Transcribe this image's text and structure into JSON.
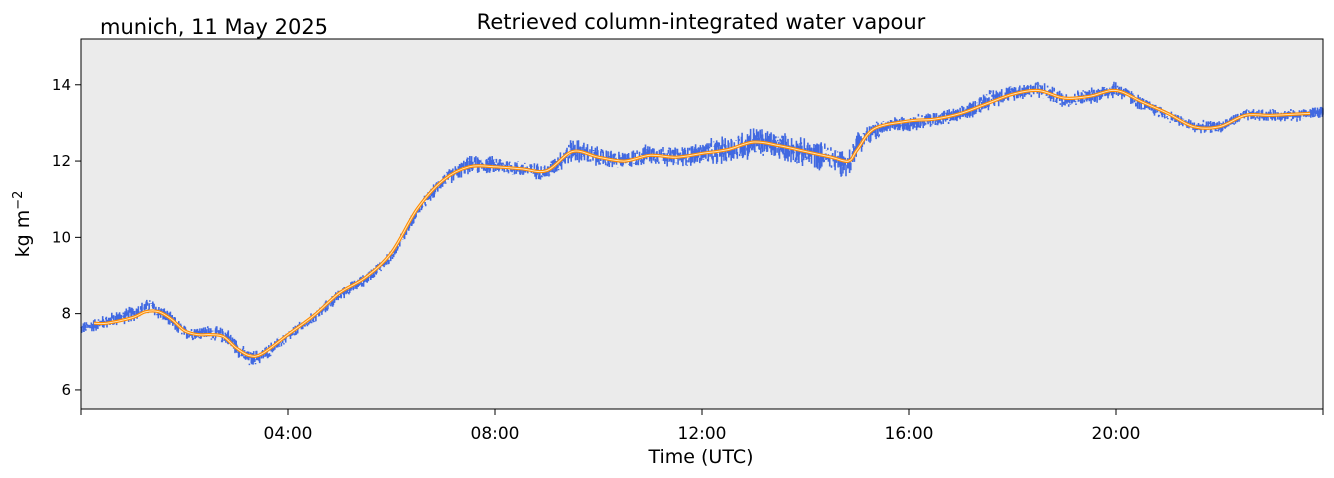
{
  "header": {
    "location_date": "munich, 11 May 2025",
    "title": "Retrieved column-integrated water vapour"
  },
  "chart_data": {
    "type": "line",
    "title": "Retrieved column-integrated water vapour",
    "xlabel": "Time (UTC)",
    "ylabel": "kg m−2",
    "ylabel_base": "kg m",
    "ylabel_exponent": "−2",
    "xlim": [
      "00:00",
      "24:00"
    ],
    "ylim": [
      5.5,
      15.2
    ],
    "x_ticks": [
      "04:00",
      "08:00",
      "12:00",
      "16:00",
      "20:00"
    ],
    "y_ticks": [
      6,
      8,
      10,
      12,
      14
    ],
    "grid": false,
    "background": "#ebebeb",
    "colors": {
      "raw": "#4169e1",
      "smooth": "#ff8c00",
      "smooth_inner": "#ffe0b0"
    },
    "series": [
      {
        "kind": "raw_scatter",
        "x": [
          "00:00",
          "00:30",
          "01:00",
          "01:20",
          "01:40",
          "02:00",
          "02:30",
          "02:50",
          "03:05",
          "03:15",
          "03:30",
          "04:00",
          "04:30",
          "05:00",
          "05:30",
          "06:00",
          "06:30",
          "07:00",
          "07:30",
          "08:00",
          "08:30",
          "09:00",
          "09:30",
          "10:00",
          "10:30",
          "11:00",
          "11:30",
          "12:00",
          "12:30",
          "13:00",
          "13:30",
          "14:00",
          "14:30",
          "14:50",
          "15:00",
          "15:30",
          "16:00",
          "16:30",
          "17:00",
          "17:30",
          "18:00",
          "18:30",
          "19:00",
          "19:30",
          "20:00",
          "20:30",
          "21:00",
          "21:30",
          "22:00",
          "22:30",
          "23:00",
          "23:30",
          "24:00"
        ],
        "y": [
          7.6,
          7.8,
          8.0,
          8.2,
          7.9,
          7.5,
          7.5,
          7.4,
          7.0,
          6.8,
          6.9,
          7.4,
          7.9,
          8.5,
          8.9,
          9.5,
          10.7,
          11.5,
          11.9,
          11.9,
          11.8,
          11.7,
          12.3,
          12.1,
          12.0,
          12.2,
          12.1,
          12.2,
          12.3,
          12.5,
          12.4,
          12.2,
          12.1,
          11.9,
          12.5,
          12.9,
          13.0,
          13.1,
          13.2,
          13.6,
          13.8,
          13.9,
          13.6,
          13.7,
          13.9,
          13.5,
          13.2,
          12.9,
          12.9,
          13.2,
          13.2,
          13.2,
          13.3
        ],
        "spread": [
          0.15,
          0.18,
          0.2,
          0.2,
          0.2,
          0.18,
          0.18,
          0.2,
          0.2,
          0.2,
          0.18,
          0.15,
          0.15,
          0.15,
          0.15,
          0.15,
          0.15,
          0.18,
          0.22,
          0.22,
          0.2,
          0.2,
          0.3,
          0.25,
          0.22,
          0.25,
          0.25,
          0.3,
          0.35,
          0.4,
          0.35,
          0.35,
          0.35,
          0.35,
          0.3,
          0.2,
          0.2,
          0.2,
          0.2,
          0.25,
          0.2,
          0.22,
          0.2,
          0.2,
          0.22,
          0.18,
          0.15,
          0.15,
          0.15,
          0.15,
          0.15,
          0.15,
          0.15
        ]
      },
      {
        "kind": "smoothed_line",
        "x": [
          "00:15",
          "00:30",
          "01:00",
          "01:15",
          "01:30",
          "01:45",
          "02:00",
          "02:15",
          "02:30",
          "02:45",
          "03:00",
          "03:15",
          "03:30",
          "04:00",
          "04:30",
          "05:00",
          "05:30",
          "06:00",
          "06:30",
          "07:00",
          "07:30",
          "08:00",
          "08:30",
          "09:00",
          "09:30",
          "10:00",
          "10:30",
          "11:00",
          "11:30",
          "12:00",
          "12:30",
          "13:00",
          "13:30",
          "14:00",
          "14:30",
          "14:50",
          "15:00",
          "15:20",
          "16:00",
          "16:30",
          "17:00",
          "17:30",
          "18:00",
          "18:30",
          "19:00",
          "19:30",
          "20:00",
          "20:30",
          "21:00",
          "21:30",
          "22:00",
          "22:30",
          "23:00",
          "23:45"
        ],
        "y": [
          7.75,
          7.75,
          7.9,
          8.05,
          8.05,
          7.85,
          7.55,
          7.45,
          7.45,
          7.4,
          7.1,
          6.9,
          6.95,
          7.45,
          7.95,
          8.55,
          8.95,
          9.6,
          10.75,
          11.5,
          11.85,
          11.85,
          11.8,
          11.75,
          12.25,
          12.1,
          12.0,
          12.15,
          12.1,
          12.2,
          12.3,
          12.5,
          12.4,
          12.25,
          12.1,
          12.0,
          12.3,
          12.85,
          13.05,
          13.1,
          13.25,
          13.5,
          13.75,
          13.85,
          13.65,
          13.7,
          13.85,
          13.55,
          13.25,
          12.9,
          12.9,
          13.2,
          13.2,
          13.25
        ]
      }
    ]
  }
}
